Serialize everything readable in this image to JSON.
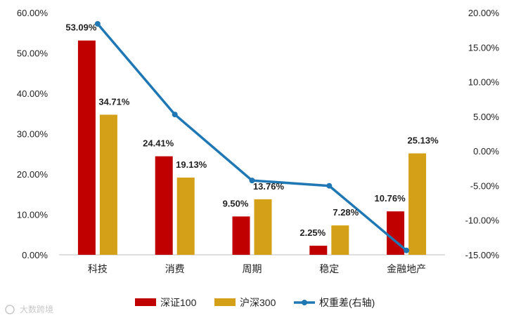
{
  "chart_data": {
    "type": "bar",
    "categories": [
      "科技",
      "消费",
      "周期",
      "稳定",
      "金融地产"
    ],
    "series": [
      {
        "name": "深证100",
        "kind": "bar",
        "axis": "left",
        "color": "#C00000",
        "values": [
          53.09,
          24.41,
          9.5,
          2.25,
          10.76
        ],
        "labels": [
          "53.09%",
          "24.41%",
          "9.50%",
          "2.25%",
          "10.76%"
        ]
      },
      {
        "name": "沪深300",
        "kind": "bar",
        "axis": "left",
        "color": "#D4A017",
        "values": [
          34.71,
          19.13,
          13.76,
          7.28,
          25.13
        ],
        "labels": [
          "34.71%",
          "19.13%",
          "13.76%",
          "7.28%",
          "25.13%"
        ]
      },
      {
        "name": "权重差(右轴)",
        "kind": "line",
        "axis": "right",
        "color": "#1F77B4",
        "values": [
          18.38,
          5.28,
          -4.26,
          -5.03,
          -14.37
        ]
      }
    ],
    "left_axis": {
      "min": 0,
      "max": 60,
      "ticks": [
        "0.00%",
        "10.00%",
        "20.00%",
        "30.00%",
        "40.00%",
        "50.00%",
        "60.00%"
      ]
    },
    "right_axis": {
      "min": -15,
      "max": 20,
      "ticks": [
        "-15.00%",
        "-10.00%",
        "-5.00%",
        "0.00%",
        "5.00%",
        "10.00%",
        "15.00%",
        "20.00%"
      ]
    },
    "legend_position": "bottom",
    "grid": false
  },
  "watermark": "大数跨境"
}
